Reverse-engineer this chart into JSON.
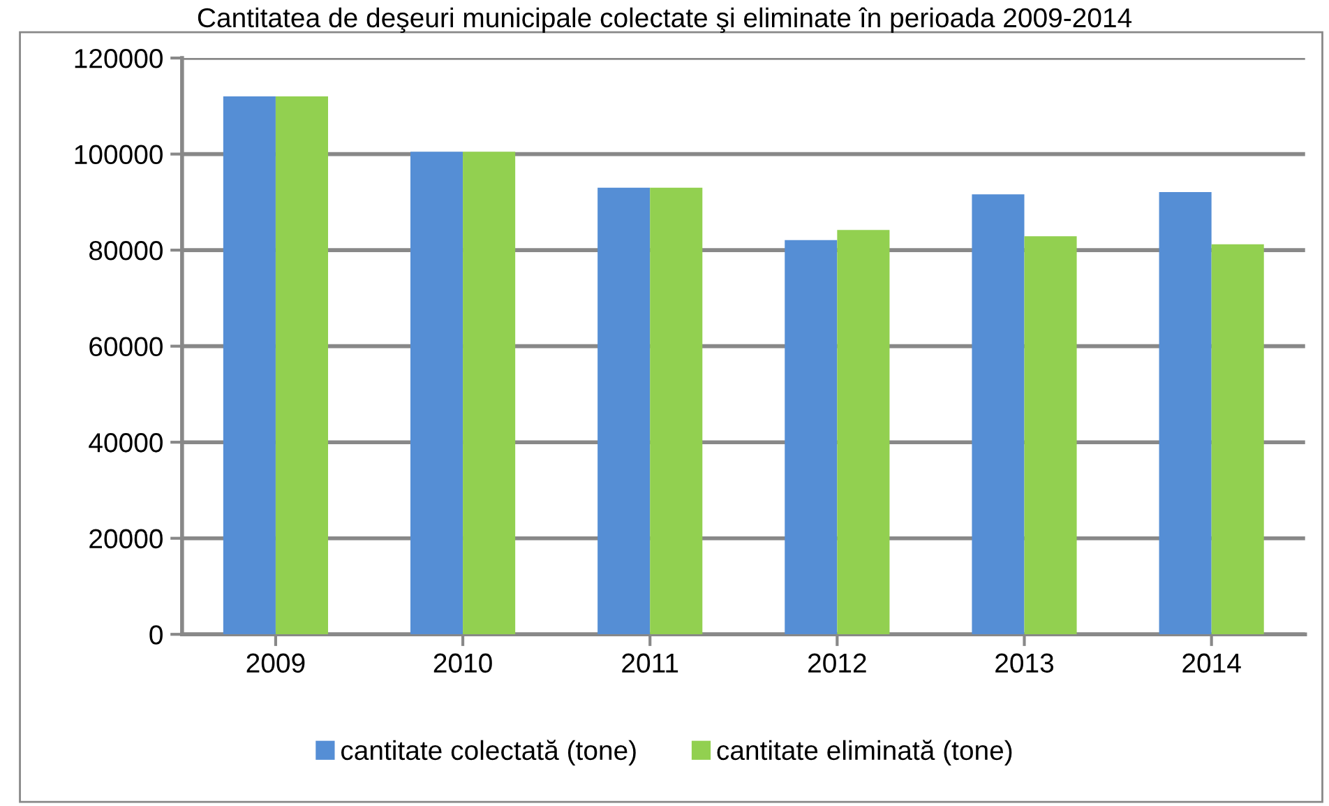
{
  "chart_data": {
    "type": "bar",
    "title": "Cantitatea de deşeuri municipale colectate şi eliminate în perioada 2009-2014",
    "categories": [
      "2009",
      "2010",
      "2011",
      "2012",
      "2013",
      "2014"
    ],
    "series": [
      {
        "name": "cantitate colectată (tone)",
        "color": "#558ed5",
        "values": [
          112000,
          100500,
          93000,
          82100,
          91600,
          92100
        ]
      },
      {
        "name": "cantitate eliminată (tone)",
        "color": "#92d050",
        "values": [
          112000,
          100500,
          93000,
          84200,
          82900,
          81200
        ]
      }
    ],
    "ylim": [
      0,
      120000
    ],
    "yticks": [
      0,
      20000,
      40000,
      60000,
      80000,
      100000,
      120000
    ],
    "grid": "y",
    "legend": "bottom"
  }
}
